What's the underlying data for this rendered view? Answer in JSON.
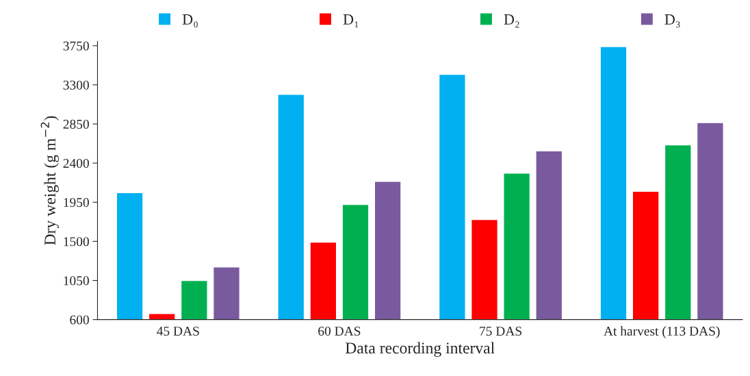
{
  "chart_data": {
    "type": "bar",
    "xlabel": "Data recording interval",
    "ylabel": "Dry weight (g m$^{−2}$)",
    "categories": [
      "45 DAS",
      "60 DAS",
      "75 DAS",
      "At harvest (113 DAS)"
    ],
    "series": [
      {
        "name": "D₀",
        "color": "#00b0f0",
        "values": [
          2060,
          3190,
          3420,
          3740
        ]
      },
      {
        "name": "D₁",
        "color": "#ff0000",
        "values": [
          670,
          1490,
          1750,
          2075
        ]
      },
      {
        "name": "D₂",
        "color": "#00b050",
        "values": [
          1050,
          1925,
          2285,
          2610
        ]
      },
      {
        "name": "D₃",
        "color": "#7a5a9e",
        "values": [
          1205,
          2190,
          2540,
          2865
        ]
      }
    ],
    "ylim": [
      600,
      3800
    ],
    "yticks": [
      600,
      1050,
      1500,
      1950,
      2400,
      2850,
      3300,
      3750
    ],
    "grid": false,
    "legend": "top"
  }
}
